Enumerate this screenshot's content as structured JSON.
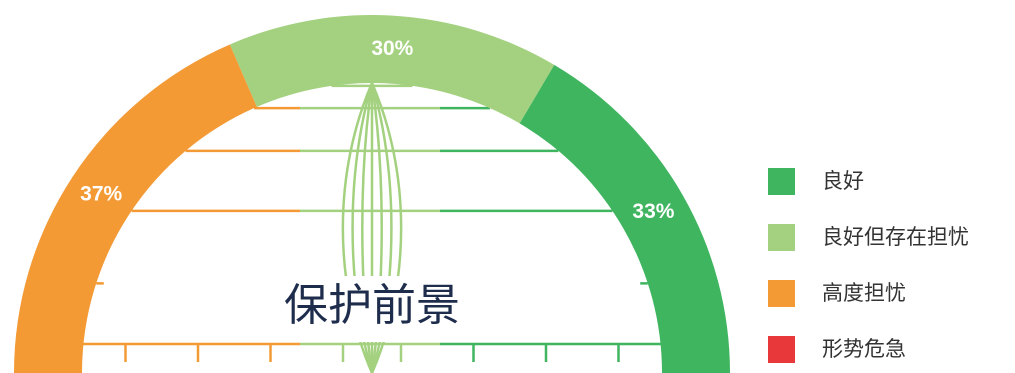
{
  "chart_data": {
    "type": "pie",
    "half": true,
    "title": "保护前景",
    "categories": [
      "良好",
      "良好但存在担忧",
      "高度担忧",
      "形势危急"
    ],
    "values": [
      33,
      30,
      37,
      null
    ],
    "value_labels": [
      "33%",
      "30%",
      "37%",
      null
    ],
    "colors": [
      "#3fb55f",
      "#a3d17f",
      "#f39a35",
      "#e8383a"
    ]
  }
}
